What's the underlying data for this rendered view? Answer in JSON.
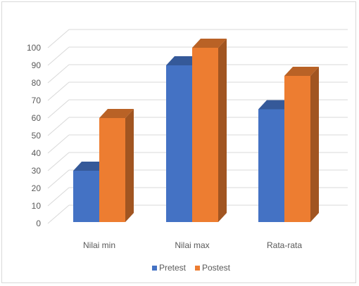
{
  "chart_data": {
    "type": "bar",
    "subtype": "3d-clustered-column",
    "categories": [
      "Nilai min",
      "Nilai max",
      "Rata-rata"
    ],
    "series": [
      {
        "name": "Pretest",
        "values": [
          30,
          90,
          65
        ],
        "color": "#4472c4"
      },
      {
        "name": "Postest",
        "values": [
          60,
          100,
          84
        ],
        "color": "#ed7d31"
      }
    ],
    "yticks": [
      0,
      10,
      20,
      30,
      40,
      50,
      60,
      70,
      80,
      90,
      100
    ],
    "ylim": [
      0,
      100
    ],
    "title": "",
    "xlabel": "",
    "ylabel": "",
    "grid": true,
    "legend_position": "bottom"
  }
}
